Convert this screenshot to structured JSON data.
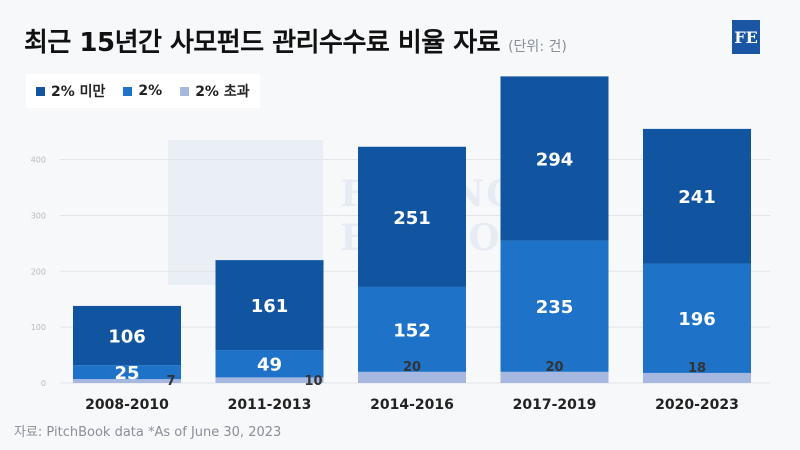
{
  "header": {
    "title": "최근 15년간 사모펀드 관리수수료 비율 자료",
    "unit": "(단위: 건)"
  },
  "logo": {
    "text": "FE"
  },
  "watermark": {
    "lines": [
      "FINANCIAL",
      "ECONOMY"
    ]
  },
  "source": "자료: PitchBook data *As of June 30, 2023",
  "colors": {
    "below_2": "#1155a0",
    "eq_2": "#1e73c8",
    "above_2": "#a6b8df",
    "grid": "#e1e4ea",
    "axis_label": "#b5b9c0"
  },
  "chart_data": {
    "type": "bar",
    "stacked": true,
    "title": "최근 15년간 사모펀드 관리수수료 비율 자료",
    "unit": "(단위: 건)",
    "categories": [
      "2008-2010",
      "2011-2013",
      "2014-2016",
      "2017-2019",
      "2020-2023"
    ],
    "series": [
      {
        "name": "2% 초과",
        "values": [
          7,
          10,
          20,
          20,
          18
        ]
      },
      {
        "name": "2%",
        "values": [
          25,
          49,
          152,
          235,
          196
        ]
      },
      {
        "name": "2% 미만",
        "values": [
          106,
          161,
          251,
          294,
          241
        ]
      }
    ],
    "legend": [
      "2% 미만",
      "2%",
      "2% 초과"
    ],
    "legend_position": "top-left",
    "ylim": [
      0,
      550
    ],
    "yticks": [
      0,
      100,
      200,
      300,
      400
    ],
    "grid": true
  }
}
